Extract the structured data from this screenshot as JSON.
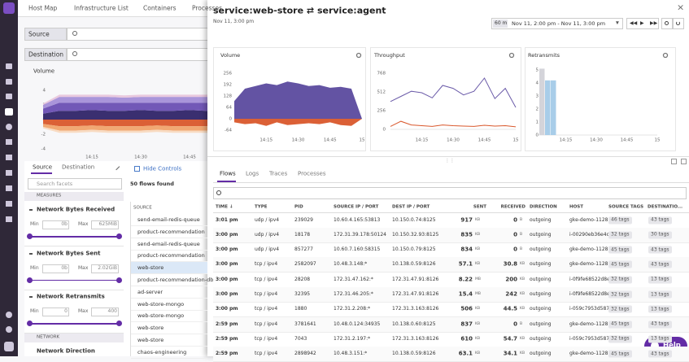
{
  "nav_tabs": [
    "Host Map",
    "Infrastructure List",
    "Containers",
    "Processes"
  ],
  "filters": {
    "source": "Source",
    "destination": "Destination"
  },
  "background_chart": {
    "type": "area",
    "title": "Volume",
    "stacked": true,
    "ylim": [
      -4.4,
      4.4
    ],
    "yticks": [
      4,
      2,
      0,
      -2,
      -4
    ],
    "xticks": [
      "14:15",
      "14:30",
      "14:45"
    ],
    "series": [
      {
        "color": "#2f2468",
        "values": [
          0.8,
          1.2,
          1.2,
          1.3,
          1.2,
          1.2,
          1.3,
          1.2,
          1.2,
          1.3,
          1.2,
          1.2,
          1.2
        ]
      },
      {
        "color": "#6a4fb3",
        "values": [
          0.7,
          1.1,
          1.1,
          1.0,
          1.1,
          1.1,
          1.0,
          1.1,
          1.1,
          1.0,
          1.1,
          1.1,
          1.1
        ]
      },
      {
        "color": "#a48fd8",
        "values": [
          0.5,
          0.8,
          0.8,
          0.8,
          0.8,
          0.7,
          0.8,
          0.8,
          0.8,
          0.8,
          0.8,
          0.8,
          0.8
        ]
      },
      {
        "color": "#e8c6dc",
        "values": [
          0.2,
          0.3,
          0.3,
          0.3,
          0.3,
          0.3,
          0.3,
          0.3,
          0.3,
          0.3,
          0.3,
          0.3,
          0.3
        ]
      },
      {
        "color": "#d9572b",
        "values": [
          -0.6,
          -0.9,
          -0.9,
          -0.8,
          -0.9,
          -0.9,
          -0.9,
          -0.8,
          -0.9,
          -0.9,
          -0.9,
          -0.9,
          -0.9
        ]
      },
      {
        "color": "#f0a36c",
        "values": [
          -0.4,
          -0.6,
          -0.6,
          -0.6,
          -0.6,
          -0.6,
          -0.6,
          -0.6,
          -0.6,
          -0.6,
          -0.6,
          -0.6,
          -0.6
        ]
      },
      {
        "color": "#f8d9bf",
        "values": [
          -0.2,
          -0.3,
          -0.3,
          -0.3,
          -0.3,
          -0.3,
          -0.3,
          -0.3,
          -0.3,
          -0.3,
          -0.3,
          -0.3,
          -0.3
        ]
      }
    ]
  },
  "side_tabs": [
    "Source",
    "Destination"
  ],
  "hide_controls": "Hide Controls",
  "flows_found": "50 flows found",
  "search_facets": "Search facets",
  "facets": {
    "measures": "MEASURES",
    "items": [
      {
        "name": "Network Bytes Received",
        "min_label": "Min",
        "min": "0b",
        "max_label": "Max",
        "max": "625MiB"
      },
      {
        "name": "Network Bytes Sent",
        "min_label": "Min",
        "min": "0b",
        "max_label": "Max",
        "max": "2.02GiB"
      },
      {
        "name": "Network Retransmits",
        "min_label": "Min",
        "min": "0",
        "max_label": "Max",
        "max": "400"
      }
    ],
    "network": "NETWORK",
    "direction": "Network Direction"
  },
  "list": {
    "header": "SOURCE",
    "items": [
      "send-email-redis-queue",
      "product-recommendation",
      "send-email-redis-queue",
      "product-recommendation",
      "web-store",
      "product-recommendation-db",
      "ad-server",
      "web-store-mongo",
      "web-store-mongo",
      "web-store",
      "web-store",
      "chaos-engineering"
    ]
  },
  "panel": {
    "title": "service:web-store ⇄ service:agent",
    "timestamp": "Nov 11, 3:00 pm",
    "range_badge": "60 m",
    "range": "Nov 11, 2:00 pm - Nov 11, 3:00 pm",
    "charts": [
      {
        "type": "area",
        "title": "Volume",
        "ylim": [
          -80,
          280
        ],
        "yticks": [
          256,
          192,
          128,
          64,
          0,
          -64
        ],
        "xticks": [
          "14:15",
          "14:30",
          "14:45",
          "15"
        ],
        "series": [
          {
            "color": "#5b4a9e",
            "values": [
              100,
              170,
              185,
              200,
              190,
              210,
              200,
              185,
              190,
              175,
              180,
              170,
              0
            ]
          },
          {
            "color": "#d9572b",
            "values": [
              -20,
              -30,
              -25,
              -40,
              -20,
              -35,
              -30,
              -25,
              -30,
              -20,
              -35,
              -40,
              0
            ]
          }
        ]
      },
      {
        "type": "line",
        "title": "Throughput",
        "ylim": [
          0,
          800
        ],
        "yticks": [
          768,
          512,
          256,
          0
        ],
        "xticks": [
          "14:15",
          "14:30",
          "14:45",
          "15"
        ],
        "series": [
          {
            "color": "#6a5aa8",
            "values": [
              380,
              450,
              520,
              500,
              430,
              600,
              560,
              470,
              520,
              700,
              420,
              560,
              300
            ]
          },
          {
            "color": "#d9572b",
            "values": [
              40,
              110,
              60,
              50,
              40,
              60,
              50,
              45,
              40,
              55,
              45,
              50,
              35
            ]
          }
        ]
      },
      {
        "type": "bar",
        "title": "Retransmits",
        "ylim": [
          0,
          5.5
        ],
        "yticks": [
          5,
          4,
          3,
          2,
          1,
          0
        ],
        "xticks": [
          "14:15",
          "14:30",
          "14:45",
          "15"
        ],
        "values": [
          5.1,
          4.2,
          4.2
        ],
        "colors": [
          "#d4d4da",
          "#a8cde9",
          "#a8cde9"
        ]
      }
    ],
    "tabs": [
      "Flows",
      "Logs",
      "Traces",
      "Processes"
    ],
    "table": {
      "columns": [
        "TIME ↓",
        "TYPE",
        "PID",
        "SOURCE IP / PORT",
        "DEST IP / PORT",
        "SENT",
        "RECEIVED",
        "DIRECTION",
        "HOST",
        "SOURCE TAGS",
        "DESTINATIO..."
      ],
      "rows": [
        [
          "3:01 pm",
          "udp / ipv4",
          "239029",
          "10.60.4.165:53813",
          "10.150.0.74:8125",
          "917",
          "KB",
          "0",
          "B",
          "outgoing",
          "gke-demo-1128",
          "46 tags",
          "43 tags"
        ],
        [
          "3:00 pm",
          "udp / ipv4",
          "18178",
          "172.31.39.178:50124",
          "10.150.32.93:8125",
          "835",
          "KB",
          "0",
          "B",
          "outgoing",
          "i-00290eb36e4c",
          "32 tags",
          "30 tags"
        ],
        [
          "3:00 pm",
          "udp / ipv4",
          "857277",
          "10.60.7.160:58315",
          "10.150.0.79:8125",
          "834",
          "KB",
          "0",
          "B",
          "outgoing",
          "gke-demo-1128",
          "45 tags",
          "43 tags"
        ],
        [
          "3:00 pm",
          "tcp / ipv4",
          "2582097",
          "10.48.3.148:*",
          "10.138.0.59:8126",
          "57.1",
          "KB",
          "30.8",
          "KB",
          "outgoing",
          "gke-demo-1128",
          "45 tags",
          "43 tags"
        ],
        [
          "3:00 pm",
          "tcp / ipv4",
          "28208",
          "172.31.47.162:*",
          "172.31.47.91:8126",
          "8.22",
          "MB",
          "200",
          "KB",
          "outgoing",
          "i-0f9fe68522d8e",
          "32 tags",
          "13 tags"
        ],
        [
          "3:00 pm",
          "tcp / ipv4",
          "32395",
          "172.31.46.205:*",
          "172.31.47.91:8126",
          "15.4",
          "MB",
          "242",
          "KB",
          "outgoing",
          "i-0f9fe68522d8e",
          "32 tags",
          "13 tags"
        ],
        [
          "3:00 pm",
          "tcp / ipv4",
          "1880",
          "172.31.2.208:*",
          "172.31.3.163:8126",
          "506",
          "KB",
          "44.5",
          "KB",
          "outgoing",
          "i-059c7953d587",
          "32 tags",
          "13 tags"
        ],
        [
          "2:59 pm",
          "tcp / ipv4",
          "3781641",
          "10.48.0.124:34935",
          "10.138.0.60:8125",
          "837",
          "KB",
          "0",
          "B",
          "outgoing",
          "gke-demo-1128",
          "45 tags",
          "43 tags"
        ],
        [
          "2:59 pm",
          "tcp / ipv4",
          "7043",
          "172.31.2.197:*",
          "172.31.3.163:8126",
          "610",
          "KB",
          "54.7",
          "KB",
          "outgoing",
          "i-059c7953d587",
          "32 tags",
          "13 tags"
        ],
        [
          "2:59 pm",
          "tcp / ipv4",
          "2898942",
          "10.48.3.151:*",
          "10.138.0.59:8126",
          "63.1",
          "KB",
          "34.1",
          "KB",
          "outgoing",
          "gke-demo-1128",
          "45 tags",
          "43 tags"
        ]
      ]
    }
  },
  "help": "Help"
}
